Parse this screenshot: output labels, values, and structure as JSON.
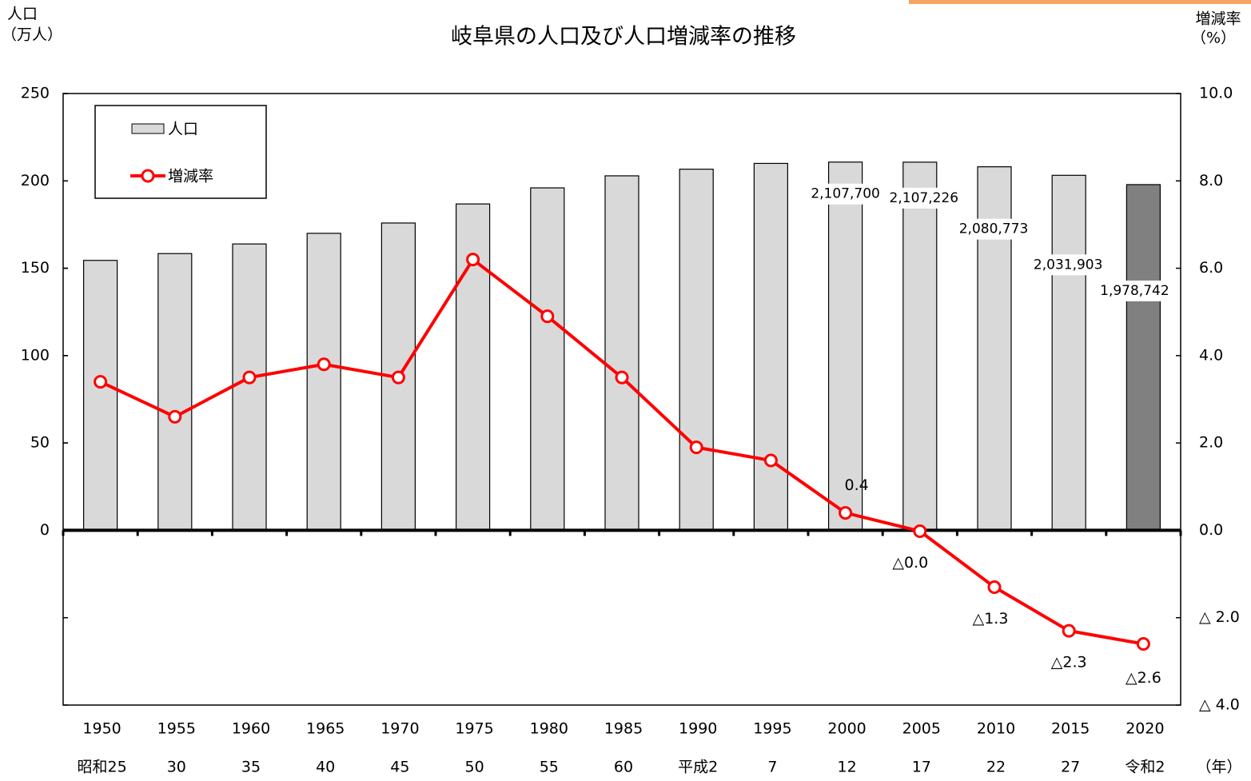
{
  "chart_data": {
    "type": "bar",
    "title": "岐阜県の人口及び人口増減率の推移",
    "y_label": [
      "人口",
      "（万人）"
    ],
    "y2_label": [
      "増減率",
      "（%）"
    ],
    "x_unit": "（年）",
    "categories": [
      "1950",
      "1955",
      "1960",
      "1965",
      "1970",
      "1975",
      "1980",
      "1985",
      "1990",
      "1995",
      "2000",
      "2005",
      "2010",
      "2015",
      "2020"
    ],
    "era_labels": [
      "昭和25",
      "30",
      "35",
      "40",
      "45",
      "50",
      "55",
      "60",
      "平成2",
      "7",
      "12",
      "17",
      "22",
      "27",
      "令和2"
    ],
    "series": [
      {
        "name": "人口",
        "type": "bar",
        "color": "#d9d9d9",
        "colors": [
          "#d9d9d9",
          "#d9d9d9",
          "#d9d9d9",
          "#d9d9d9",
          "#d9d9d9",
          "#d9d9d9",
          "#d9d9d9",
          "#d9d9d9",
          "#d9d9d9",
          "#d9d9d9",
          "#d9d9d9",
          "#d9d9d9",
          "#d9d9d9",
          "#d9d9d9",
          "#808080"
        ],
        "values": [
          154.5,
          158.4,
          163.9,
          170.0,
          175.9,
          186.8,
          196.0,
          202.9,
          206.7,
          210.0,
          210.77,
          210.7226,
          208.0773,
          203.1903,
          197.8742
        ],
        "value_labels": [
          null,
          null,
          null,
          null,
          null,
          null,
          null,
          null,
          null,
          null,
          "2,107,700",
          "2,107,226",
          "2,080,773",
          "2,031,903",
          "1,978,742"
        ]
      },
      {
        "name": "増減率",
        "type": "line",
        "axis": "y2",
        "color": "#ff0000",
        "values": [
          3.4,
          2.6,
          3.5,
          3.8,
          3.5,
          6.2,
          4.9,
          3.5,
          1.9,
          1.6,
          0.4,
          -0.02,
          -1.3,
          -2.3,
          -2.6
        ],
        "value_labels": [
          null,
          null,
          null,
          null,
          null,
          null,
          null,
          null,
          null,
          null,
          "0.4",
          "△0.0",
          "△1.3",
          "△2.3",
          "△2.6"
        ]
      }
    ],
    "ylim": [
      -100,
      250
    ],
    "yticks": [
      0,
      50,
      100,
      150,
      200,
      250
    ],
    "y2lim": [
      -4,
      10
    ],
    "y2ticks": [
      {
        "value": 10,
        "label": "10.0"
      },
      {
        "value": 8,
        "label": "8.0"
      },
      {
        "value": 6,
        "label": "6.0"
      },
      {
        "value": 4,
        "label": "4.0"
      },
      {
        "value": 2,
        "label": "2.0"
      },
      {
        "value": 0,
        "label": "0.0"
      },
      {
        "value": -2,
        "label": "△ 2.0"
      },
      {
        "value": -4,
        "label": "△ 4.0"
      }
    ],
    "grid": false
  }
}
